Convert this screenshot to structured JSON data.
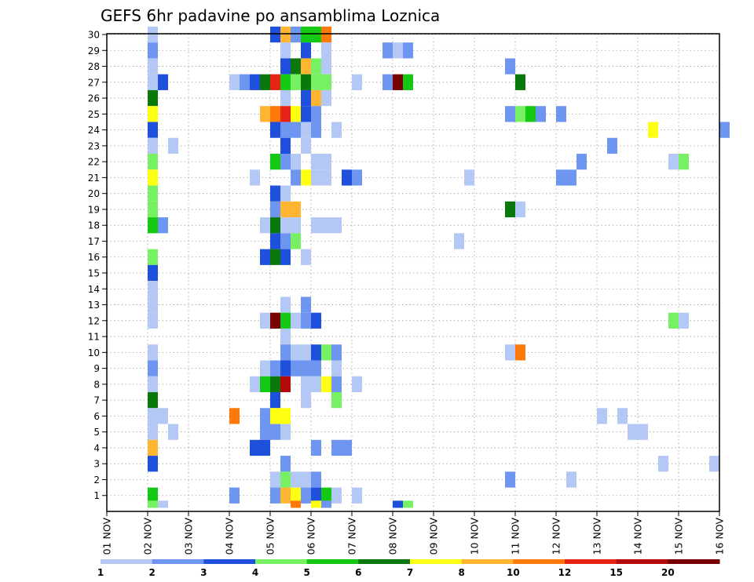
{
  "chart_data": {
    "type": "heatmap",
    "title": "GEFS 6hr padavine po ansamblima Loznica",
    "x": {
      "start_day": 1,
      "end_day": 16,
      "unit": "NOV",
      "tick_labels": [
        "01 NOV",
        "02 NOV",
        "03 NOV",
        "04 NOV",
        "05 NOV",
        "06 NOV",
        "07 NOV",
        "08 NOV",
        "09 NOV",
        "10 NOV",
        "11 NOV",
        "12 NOV",
        "13 NOV",
        "14 NOV",
        "15 NOV",
        "16 NOV"
      ],
      "steps_per_day": 4
    },
    "y": {
      "range": [
        0,
        30
      ],
      "tick_labels": [
        "1",
        "2",
        "3",
        "4",
        "5",
        "6",
        "7",
        "8",
        "9",
        "10",
        "11",
        "12",
        "13",
        "14",
        "15",
        "16",
        "17",
        "18",
        "19",
        "20",
        "21",
        "22",
        "23",
        "24",
        "25",
        "26",
        "27",
        "28",
        "29",
        "30"
      ]
    },
    "grid": true,
    "legend": {
      "placement": "bottom",
      "bounds": [
        1,
        2,
        3,
        4,
        5,
        6,
        7,
        8,
        10,
        12,
        15,
        20
      ],
      "colors": [
        "#b4c8f5",
        "#6e96f0",
        "#1e50dc",
        "#78f064",
        "#14c814",
        "#0a780a",
        "#ffff14",
        "#ffb432",
        "#ff780a",
        "#e62314",
        "#b40a0a",
        "#780000"
      ]
    },
    "cells_note": "member, day, step (0-3 = 00/06/12/18 UTC), color index into legend.colors",
    "cells": [
      [
        30,
        2,
        0,
        0
      ],
      [
        30,
        5,
        0,
        2
      ],
      [
        30,
        5,
        1,
        7
      ],
      [
        30,
        5,
        2,
        1
      ],
      [
        30,
        5,
        3,
        4
      ],
      [
        30,
        6,
        0,
        4
      ],
      [
        30,
        6,
        1,
        8
      ],
      [
        29,
        2,
        0,
        1
      ],
      [
        29,
        5,
        1,
        0
      ],
      [
        29,
        5,
        3,
        2
      ],
      [
        29,
        6,
        1,
        0
      ],
      [
        29,
        7,
        3,
        1
      ],
      [
        29,
        8,
        0,
        0
      ],
      [
        29,
        8,
        1,
        1
      ],
      [
        28,
        2,
        0,
        0
      ],
      [
        28,
        5,
        1,
        2
      ],
      [
        28,
        5,
        2,
        5
      ],
      [
        28,
        5,
        3,
        7
      ],
      [
        28,
        6,
        0,
        3
      ],
      [
        28,
        6,
        1,
        0
      ],
      [
        28,
        10,
        3,
        1
      ],
      [
        27,
        2,
        0,
        0
      ],
      [
        27,
        2,
        1,
        2
      ],
      [
        27,
        4,
        0,
        0
      ],
      [
        27,
        4,
        1,
        1
      ],
      [
        27,
        4,
        2,
        2
      ],
      [
        27,
        4,
        3,
        5
      ],
      [
        27,
        5,
        0,
        9
      ],
      [
        27,
        5,
        1,
        4
      ],
      [
        27,
        5,
        2,
        3
      ],
      [
        27,
        5,
        3,
        5
      ],
      [
        27,
        6,
        0,
        3
      ],
      [
        27,
        6,
        1,
        3
      ],
      [
        27,
        7,
        0,
        0
      ],
      [
        27,
        7,
        3,
        1
      ],
      [
        27,
        8,
        0,
        11
      ],
      [
        27,
        8,
        1,
        4
      ],
      [
        27,
        11,
        0,
        5
      ],
      [
        26,
        2,
        0,
        5
      ],
      [
        26,
        5,
        1,
        0
      ],
      [
        26,
        5,
        3,
        2
      ],
      [
        26,
        6,
        0,
        7
      ],
      [
        26,
        6,
        1,
        0
      ],
      [
        25,
        2,
        0,
        6
      ],
      [
        25,
        4,
        3,
        7
      ],
      [
        25,
        5,
        0,
        8
      ],
      [
        25,
        5,
        1,
        9
      ],
      [
        25,
        5,
        2,
        6
      ],
      [
        25,
        5,
        3,
        2
      ],
      [
        25,
        6,
        0,
        1
      ],
      [
        25,
        10,
        3,
        1
      ],
      [
        25,
        11,
        0,
        3
      ],
      [
        25,
        11,
        1,
        4
      ],
      [
        25,
        11,
        2,
        1
      ],
      [
        25,
        12,
        0,
        1
      ],
      [
        24,
        2,
        0,
        2
      ],
      [
        24,
        5,
        0,
        2
      ],
      [
        24,
        5,
        1,
        1
      ],
      [
        24,
        5,
        2,
        1
      ],
      [
        24,
        5,
        3,
        0
      ],
      [
        24,
        6,
        0,
        1
      ],
      [
        24,
        6,
        2,
        0
      ],
      [
        24,
        14,
        1,
        6
      ],
      [
        24,
        16,
        0,
        1
      ],
      [
        23,
        2,
        0,
        0
      ],
      [
        23,
        2,
        2,
        0
      ],
      [
        23,
        5,
        1,
        2
      ],
      [
        23,
        5,
        3,
        0
      ],
      [
        23,
        13,
        1,
        1
      ],
      [
        22,
        2,
        0,
        3
      ],
      [
        22,
        5,
        0,
        4
      ],
      [
        22,
        5,
        1,
        1
      ],
      [
        22,
        5,
        2,
        0
      ],
      [
        22,
        6,
        0,
        0
      ],
      [
        22,
        6,
        1,
        0
      ],
      [
        22,
        12,
        2,
        1
      ],
      [
        22,
        14,
        3,
        0
      ],
      [
        22,
        15,
        0,
        3
      ],
      [
        21,
        2,
        0,
        6
      ],
      [
        21,
        4,
        2,
        0
      ],
      [
        21,
        5,
        2,
        1
      ],
      [
        21,
        5,
        3,
        6
      ],
      [
        21,
        6,
        0,
        0
      ],
      [
        21,
        6,
        1,
        0
      ],
      [
        21,
        6,
        3,
        2
      ],
      [
        21,
        7,
        0,
        1
      ],
      [
        21,
        9,
        3,
        0
      ],
      [
        21,
        12,
        0,
        1
      ],
      [
        21,
        12,
        1,
        1
      ],
      [
        20,
        2,
        0,
        3
      ],
      [
        20,
        5,
        0,
        2
      ],
      [
        20,
        5,
        1,
        0
      ],
      [
        19,
        2,
        0,
        3
      ],
      [
        19,
        5,
        0,
        1
      ],
      [
        19,
        5,
        1,
        7
      ],
      [
        19,
        5,
        2,
        7
      ],
      [
        19,
        10,
        3,
        5
      ],
      [
        19,
        11,
        0,
        0
      ],
      [
        18,
        2,
        0,
        4
      ],
      [
        18,
        2,
        1,
        1
      ],
      [
        18,
        4,
        3,
        0
      ],
      [
        18,
        5,
        0,
        5
      ],
      [
        18,
        5,
        1,
        0
      ],
      [
        18,
        5,
        2,
        0
      ],
      [
        18,
        6,
        0,
        0
      ],
      [
        18,
        6,
        1,
        0
      ],
      [
        18,
        6,
        2,
        0
      ],
      [
        17,
        5,
        0,
        2
      ],
      [
        17,
        5,
        1,
        1
      ],
      [
        17,
        5,
        2,
        3
      ],
      [
        17,
        9,
        2,
        0
      ],
      [
        16,
        2,
        0,
        3
      ],
      [
        16,
        4,
        3,
        2
      ],
      [
        16,
        5,
        0,
        5
      ],
      [
        16,
        5,
        1,
        2
      ],
      [
        16,
        5,
        3,
        0
      ],
      [
        15,
        2,
        0,
        2
      ],
      [
        14,
        2,
        0,
        0
      ],
      [
        13,
        2,
        0,
        0
      ],
      [
        13,
        5,
        1,
        0
      ],
      [
        13,
        5,
        3,
        1
      ],
      [
        12,
        2,
        0,
        0
      ],
      [
        12,
        4,
        3,
        0
      ],
      [
        12,
        5,
        0,
        11
      ],
      [
        12,
        5,
        1,
        4
      ],
      [
        12,
        5,
        2,
        0
      ],
      [
        12,
        5,
        3,
        1
      ],
      [
        12,
        6,
        0,
        2
      ],
      [
        12,
        14,
        3,
        3
      ],
      [
        12,
        15,
        0,
        0
      ],
      [
        11,
        5,
        1,
        0
      ],
      [
        10,
        2,
        0,
        0
      ],
      [
        10,
        5,
        1,
        1
      ],
      [
        10,
        5,
        2,
        0
      ],
      [
        10,
        5,
        3,
        0
      ],
      [
        10,
        6,
        0,
        2
      ],
      [
        10,
        6,
        1,
        3
      ],
      [
        10,
        6,
        2,
        1
      ],
      [
        10,
        10,
        3,
        0
      ],
      [
        10,
        11,
        0,
        8
      ],
      [
        9,
        2,
        0,
        1
      ],
      [
        9,
        4,
        3,
        0
      ],
      [
        9,
        5,
        0,
        1
      ],
      [
        9,
        5,
        1,
        2
      ],
      [
        9,
        5,
        2,
        1
      ],
      [
        9,
        5,
        3,
        1
      ],
      [
        9,
        6,
        0,
        1
      ],
      [
        9,
        6,
        2,
        0
      ],
      [
        8,
        2,
        0,
        0
      ],
      [
        8,
        4,
        2,
        0
      ],
      [
        8,
        4,
        3,
        4
      ],
      [
        8,
        5,
        0,
        5
      ],
      [
        8,
        5,
        1,
        10
      ],
      [
        8,
        5,
        3,
        0
      ],
      [
        8,
        6,
        0,
        0
      ],
      [
        8,
        6,
        1,
        6
      ],
      [
        8,
        6,
        2,
        1
      ],
      [
        8,
        7,
        0,
        0
      ],
      [
        7,
        2,
        0,
        5
      ],
      [
        7,
        5,
        0,
        2
      ],
      [
        7,
        5,
        3,
        0
      ],
      [
        7,
        6,
        2,
        3
      ],
      [
        6,
        2,
        0,
        0
      ],
      [
        6,
        2,
        1,
        0
      ],
      [
        6,
        4,
        0,
        8
      ],
      [
        6,
        4,
        3,
        1
      ],
      [
        6,
        5,
        0,
        6
      ],
      [
        6,
        5,
        1,
        6
      ],
      [
        6,
        13,
        0,
        0
      ],
      [
        6,
        13,
        2,
        0
      ],
      [
        5,
        2,
        0,
        0
      ],
      [
        5,
        2,
        2,
        0
      ],
      [
        5,
        4,
        3,
        1
      ],
      [
        5,
        5,
        0,
        1
      ],
      [
        5,
        5,
        1,
        0
      ],
      [
        5,
        13,
        3,
        0
      ],
      [
        5,
        14,
        0,
        0
      ],
      [
        4,
        2,
        0,
        7
      ],
      [
        4,
        4,
        2,
        2
      ],
      [
        4,
        4,
        3,
        2
      ],
      [
        4,
        6,
        0,
        1
      ],
      [
        4,
        6,
        2,
        1
      ],
      [
        4,
        6,
        3,
        1
      ],
      [
        3,
        2,
        0,
        2
      ],
      [
        3,
        5,
        1,
        1
      ],
      [
        3,
        14,
        2,
        0
      ],
      [
        3,
        15,
        3,
        0
      ],
      [
        2,
        5,
        0,
        0
      ],
      [
        2,
        5,
        1,
        3
      ],
      [
        2,
        5,
        2,
        0
      ],
      [
        2,
        5,
        3,
        0
      ],
      [
        2,
        6,
        0,
        1
      ],
      [
        2,
        10,
        3,
        1
      ],
      [
        2,
        12,
        1,
        0
      ],
      [
        1,
        2,
        0,
        4
      ],
      [
        1,
        4,
        0,
        1
      ],
      [
        1,
        5,
        0,
        1
      ],
      [
        1,
        5,
        1,
        7
      ],
      [
        1,
        5,
        2,
        6
      ],
      [
        1,
        5,
        3,
        1
      ],
      [
        1,
        6,
        0,
        2
      ],
      [
        1,
        6,
        1,
        4
      ],
      [
        1,
        6,
        2,
        0
      ],
      [
        1,
        7,
        0,
        0
      ],
      [
        0,
        2,
        0,
        3
      ],
      [
        0,
        2,
        1,
        0
      ],
      [
        0,
        5,
        2,
        8
      ],
      [
        0,
        6,
        0,
        6
      ],
      [
        0,
        6,
        1,
        1
      ],
      [
        0,
        8,
        0,
        2
      ],
      [
        0,
        8,
        1,
        3
      ]
    ]
  }
}
